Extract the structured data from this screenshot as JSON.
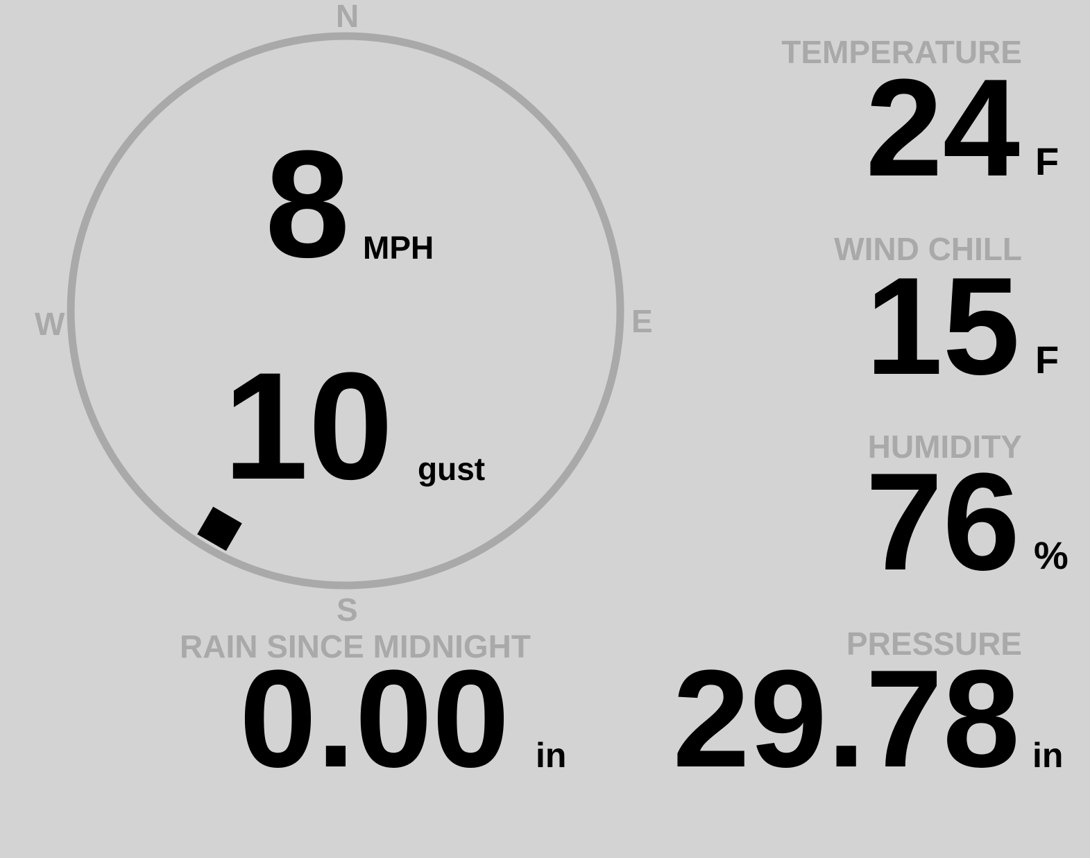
{
  "wind": {
    "speed": "8",
    "speed_unit": "MPH",
    "gust": "10",
    "gust_unit": "gust",
    "direction_degrees": 210,
    "compass": {
      "n": "N",
      "e": "E",
      "s": "S",
      "w": "W"
    }
  },
  "rain": {
    "label": "RAIN SINCE MIDNIGHT",
    "value": "0.00",
    "unit": "in"
  },
  "temperature": {
    "label": "TEMPERATURE",
    "value": "24",
    "unit": "F"
  },
  "wind_chill": {
    "label": "WIND CHILL",
    "value": "15",
    "unit": "F"
  },
  "humidity": {
    "label": "HUMIDITY",
    "value": "76",
    "unit": "%"
  },
  "pressure": {
    "label": "PRESSURE",
    "value": "29.78",
    "unit": "in"
  },
  "colors": {
    "background": "#d3d3d3",
    "label": "#a9a9a9",
    "value": "#000000",
    "ring": "#a9a9a9"
  }
}
